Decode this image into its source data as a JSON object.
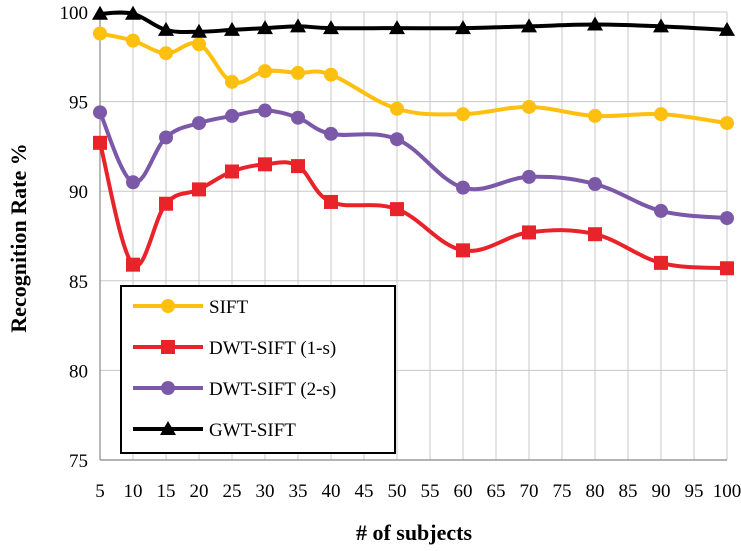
{
  "chart_data": {
    "type": "line",
    "x": [
      5,
      10,
      15,
      20,
      25,
      30,
      35,
      40,
      50,
      60,
      70,
      80,
      90,
      100
    ],
    "x_ticks": [
      5,
      10,
      15,
      20,
      25,
      30,
      35,
      40,
      45,
      50,
      55,
      60,
      65,
      70,
      75,
      80,
      85,
      90,
      95,
      100
    ],
    "y_ticks": [
      75,
      80,
      85,
      90,
      95,
      100
    ],
    "xlabel": "# of subjects",
    "ylabel": "Recognition Rate %",
    "ylim": [
      75,
      100
    ],
    "xlim": [
      5,
      100
    ],
    "grid": true,
    "legend_position": "lower-left",
    "series": [
      {
        "name": "SIFT",
        "color": "#fdbf10",
        "marker": "circle",
        "values": [
          98.8,
          98.4,
          97.7,
          98.2,
          96.1,
          96.7,
          96.6,
          96.5,
          94.6,
          94.3,
          94.7,
          94.2,
          94.3,
          93.8
        ]
      },
      {
        "name": "DWT-SIFT (1-s)",
        "color": "#e8242a",
        "marker": "square",
        "values": [
          92.7,
          85.9,
          89.3,
          90.1,
          91.1,
          91.5,
          91.4,
          89.4,
          89.0,
          86.7,
          87.7,
          87.6,
          86.0,
          85.7
        ]
      },
      {
        "name": "DWT-SIFT (2-s)",
        "color": "#7b58a8",
        "marker": "circle",
        "values": [
          94.4,
          90.5,
          93.0,
          93.8,
          94.2,
          94.5,
          94.1,
          93.2,
          92.9,
          90.2,
          90.8,
          90.4,
          88.9,
          88.5
        ]
      },
      {
        "name": "GWT-SIFT",
        "color": "#000000",
        "marker": "triangle",
        "values": [
          99.9,
          99.9,
          99.0,
          98.9,
          99.0,
          99.1,
          99.2,
          99.1,
          99.1,
          99.1,
          99.2,
          99.3,
          99.2,
          99.0
        ]
      }
    ]
  }
}
